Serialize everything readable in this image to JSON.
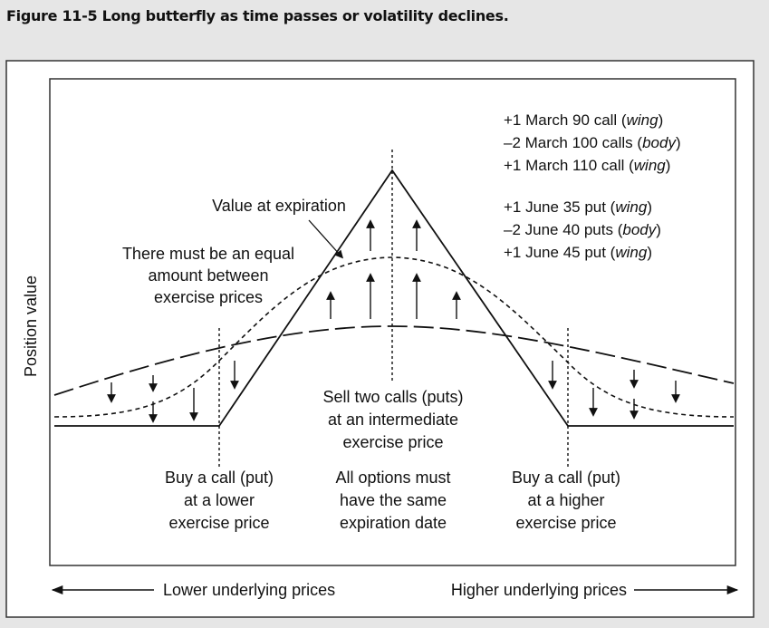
{
  "figure_title": "Figure 11-5  Long butterfly as time passes or volatility declines.",
  "y_axis_label": "Position value",
  "legend": {
    "calls": [
      {
        "prefix": "+1 March 90 call (",
        "role": "wing",
        "suffix": ")"
      },
      {
        "prefix": "–2 March 100 calls (",
        "role": "body",
        "suffix": ")"
      },
      {
        "prefix": "+1 March 110 call (",
        "role": "wing",
        "suffix": ")"
      }
    ],
    "puts": [
      {
        "prefix": "+1 June 35 put (",
        "role": "wing",
        "suffix": ")"
      },
      {
        "prefix": "–2 June 40 puts (",
        "role": "body",
        "suffix": ")"
      },
      {
        "prefix": "+1 June 45 put (",
        "role": "wing",
        "suffix": ")"
      }
    ]
  },
  "annotations": {
    "value_at_expiration": "Value at expiration",
    "equal_amount": [
      "There must be an equal",
      "amount between",
      "exercise prices"
    ],
    "sell_two_calls": [
      "Sell two calls (puts)",
      "at an intermediate",
      "exercise price"
    ],
    "buy_lower": [
      "Buy a call (put)",
      "at a lower",
      "exercise price"
    ],
    "same_expiration": [
      "All options must",
      "have the same",
      "expiration date"
    ],
    "buy_higher": [
      "Buy a call (put)",
      "at a higher",
      "exercise price"
    ]
  },
  "x_axis": {
    "lower": "Lower underlying prices",
    "higher": "Higher underlying prices"
  },
  "colors": {
    "ink": "#111111",
    "panel": "#ffffff",
    "background": "#e6e6e6"
  }
}
